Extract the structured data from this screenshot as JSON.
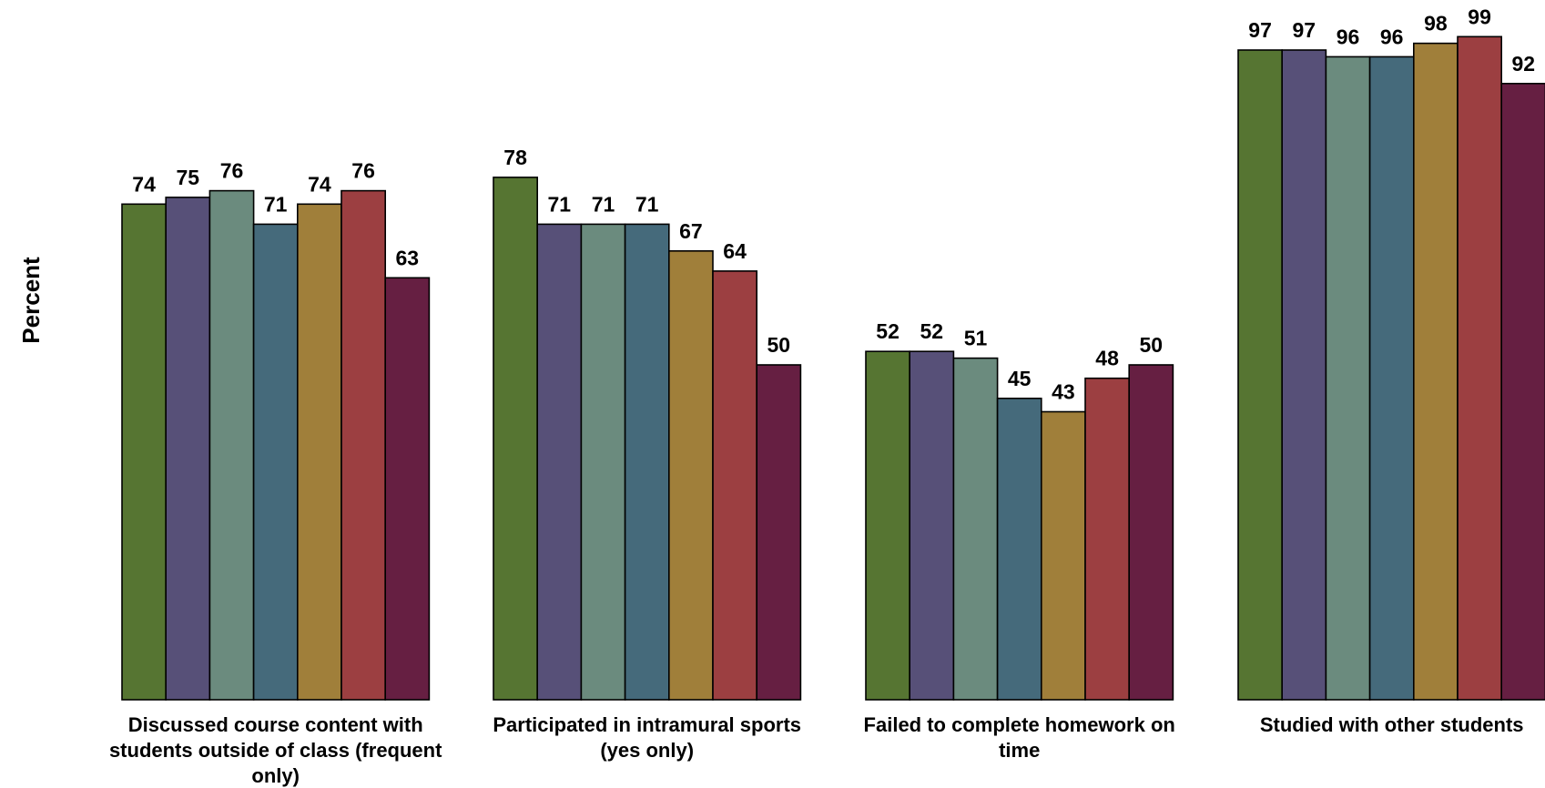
{
  "chart_data": {
    "type": "bar",
    "ylabel": "Percent",
    "xlabel": "",
    "ylim": [
      0,
      100
    ],
    "grid": false,
    "categories": [
      [
        "Discussed course content with",
        "students outside of class (frequent",
        "only)"
      ],
      [
        "Participated in intramural sports",
        "(yes only)"
      ],
      [
        "Failed to complete homework on",
        "time"
      ],
      [
        "Studied with other students"
      ]
    ],
    "series": [
      {
        "color": "#567532",
        "values": [
          74,
          78,
          52,
          97
        ]
      },
      {
        "color": "#575078",
        "values": [
          75,
          71,
          52,
          97
        ]
      },
      {
        "color": "#6b8b7e",
        "values": [
          76,
          71,
          51,
          96
        ]
      },
      {
        "color": "#456a7b",
        "values": [
          71,
          71,
          45,
          96
        ]
      },
      {
        "color": "#a07f3a",
        "values": [
          74,
          67,
          43,
          98
        ]
      },
      {
        "color": "#9c3f41",
        "values": [
          76,
          64,
          48,
          99
        ]
      },
      {
        "color": "#661f42",
        "values": [
          63,
          50,
          50,
          92
        ]
      }
    ]
  }
}
